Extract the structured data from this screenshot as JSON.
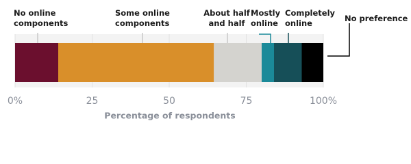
{
  "chart_data": {
    "type": "stacked-bar-horizontal",
    "series": [
      {
        "name": "No online components",
        "color": "#6b0f2e",
        "values": [
          14
        ]
      },
      {
        "name": "Some online components",
        "color": "#d98f2a",
        "values": [
          50.5
        ]
      },
      {
        "name": "About half and half",
        "color": "#d4d3cf",
        "values": [
          15.5
        ]
      },
      {
        "name": "Mostly online",
        "color": "#1b8a99",
        "values": [
          4
        ]
      },
      {
        "name": "Completely online",
        "color": "#164f58",
        "values": [
          9
        ]
      },
      {
        "name": "No preference",
        "color": "#000000",
        "values": [
          7
        ]
      }
    ],
    "xlim": [
      0,
      100
    ],
    "xticks": [
      {
        "value": 0,
        "label": "0%"
      },
      25,
      50,
      75,
      {
        "value": 100,
        "label": "100%"
      }
    ],
    "x_label": "Percentage of respondents"
  }
}
